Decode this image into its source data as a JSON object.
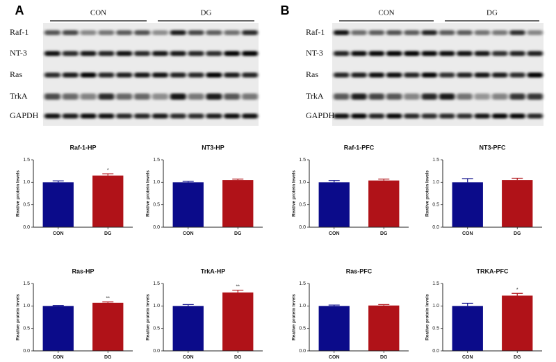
{
  "blots": [
    {
      "label": "A",
      "groups": [
        "CON",
        "DG"
      ],
      "rows": [
        "Raf-1",
        "NT-3",
        "Ras",
        "TrkA",
        "GAPDH"
      ]
    },
    {
      "label": "B",
      "groups": [
        "CON",
        "DG"
      ],
      "rows": [
        "Raf-1",
        "NT-3",
        "Ras",
        "TrkA",
        "GAPDH"
      ]
    }
  ],
  "chart_data": [
    {
      "type": "bar",
      "title": "Raf-1-HP",
      "ylabel": "Reative protein levels",
      "categories": [
        "CON",
        "DG"
      ],
      "values": [
        1.0,
        1.15
      ],
      "errors": [
        0.03,
        0.04
      ],
      "significance": [
        null,
        "*"
      ],
      "colors": [
        "#0b0b8a",
        "#b01218"
      ],
      "ylim": [
        0,
        1.5
      ],
      "yticks": [
        {
          "value": 0,
          "label": "0.0"
        },
        {
          "value": 0.5,
          "label": "0.5"
        },
        {
          "value": 1,
          "label": "1.0"
        },
        {
          "value": 1.5,
          "label": "1.5"
        }
      ]
    },
    {
      "type": "bar",
      "title": "NT3-HP",
      "ylabel": "Reative protein levels",
      "categories": [
        "CON",
        "DG"
      ],
      "values": [
        1.0,
        1.05
      ],
      "errors": [
        0.02,
        0.02
      ],
      "significance": [
        null,
        null
      ],
      "colors": [
        "#0b0b8a",
        "#b01218"
      ],
      "ylim": [
        0,
        1.5
      ],
      "yticks": [
        {
          "value": 0,
          "label": "0.0"
        },
        {
          "value": 0.5,
          "label": "0.5"
        },
        {
          "value": 1,
          "label": "1.0"
        },
        {
          "value": 1.5,
          "label": "1.5"
        }
      ]
    },
    {
      "type": "bar",
      "title": "Raf-1-PFC",
      "ylabel": "Reative protein levels",
      "categories": [
        "CON",
        "DG"
      ],
      "values": [
        1.0,
        1.04
      ],
      "errors": [
        0.04,
        0.03
      ],
      "significance": [
        null,
        null
      ],
      "colors": [
        "#0b0b8a",
        "#b01218"
      ],
      "ylim": [
        0,
        1.5
      ],
      "yticks": [
        {
          "value": 0,
          "label": "0.0"
        },
        {
          "value": 0.5,
          "label": "0.5"
        },
        {
          "value": 1,
          "label": "1.0"
        },
        {
          "value": 1.5,
          "label": "1.5"
        }
      ]
    },
    {
      "type": "bar",
      "title": "NT3-PFC",
      "ylabel": "Reative protein levels",
      "categories": [
        "CON",
        "DG"
      ],
      "values": [
        1.0,
        1.05
      ],
      "errors": [
        0.08,
        0.04
      ],
      "significance": [
        null,
        null
      ],
      "colors": [
        "#0b0b8a",
        "#b01218"
      ],
      "ylim": [
        0,
        1.5
      ],
      "yticks": [
        {
          "value": 0,
          "label": "0.0"
        },
        {
          "value": 0.5,
          "label": "0.5"
        },
        {
          "value": 1,
          "label": "1.0"
        },
        {
          "value": 1.5,
          "label": "1.5"
        }
      ]
    },
    {
      "type": "bar",
      "title": "Ras-HP",
      "ylabel": "Reative protein levels",
      "categories": [
        "CON",
        "DG"
      ],
      "values": [
        1.0,
        1.07
      ],
      "errors": [
        0.01,
        0.02
      ],
      "significance": [
        null,
        "**"
      ],
      "colors": [
        "#0b0b8a",
        "#b01218"
      ],
      "ylim": [
        0,
        1.5
      ],
      "yticks": [
        {
          "value": 0,
          "label": "0.0"
        },
        {
          "value": 0.5,
          "label": "0.5"
        },
        {
          "value": 1,
          "label": "1.0"
        },
        {
          "value": 1.5,
          "label": "1.5"
        }
      ]
    },
    {
      "type": "bar",
      "title": "TrkA-HP",
      "ylabel": "Reative protein levels",
      "categories": [
        "CON",
        "DG"
      ],
      "values": [
        1.0,
        1.3
      ],
      "errors": [
        0.03,
        0.05
      ],
      "significance": [
        null,
        "**"
      ],
      "colors": [
        "#0b0b8a",
        "#b01218"
      ],
      "ylim": [
        0,
        1.5
      ],
      "yticks": [
        {
          "value": 0,
          "label": "0.0"
        },
        {
          "value": 0.5,
          "label": "0.5"
        },
        {
          "value": 1,
          "label": "1.0"
        },
        {
          "value": 1.5,
          "label": "1.5"
        }
      ]
    },
    {
      "type": "bar",
      "title": "Ras-PFC",
      "ylabel": "Reative protein levels",
      "categories": [
        "CON",
        "DG"
      ],
      "values": [
        1.0,
        1.01
      ],
      "errors": [
        0.02,
        0.02
      ],
      "significance": [
        null,
        null
      ],
      "colors": [
        "#0b0b8a",
        "#b01218"
      ],
      "ylim": [
        0,
        1.5
      ],
      "yticks": [
        {
          "value": 0,
          "label": "0.0"
        },
        {
          "value": 0.5,
          "label": "0.5"
        },
        {
          "value": 1,
          "label": "1.0"
        },
        {
          "value": 1.5,
          "label": "1.5"
        }
      ]
    },
    {
      "type": "bar",
      "title": "TRKA-PFC",
      "ylabel": "Reative protein levels",
      "categories": [
        "CON",
        "DG"
      ],
      "values": [
        1.0,
        1.23
      ],
      "errors": [
        0.06,
        0.05
      ],
      "significance": [
        null,
        "*"
      ],
      "colors": [
        "#0b0b8a",
        "#b01218"
      ],
      "ylim": [
        0,
        1.5
      ],
      "yticks": [
        {
          "value": 0,
          "label": "0.0"
        },
        {
          "value": 0.5,
          "label": "0.5"
        },
        {
          "value": 1,
          "label": "1.0"
        },
        {
          "value": 1.5,
          "label": "1.5"
        }
      ]
    }
  ]
}
